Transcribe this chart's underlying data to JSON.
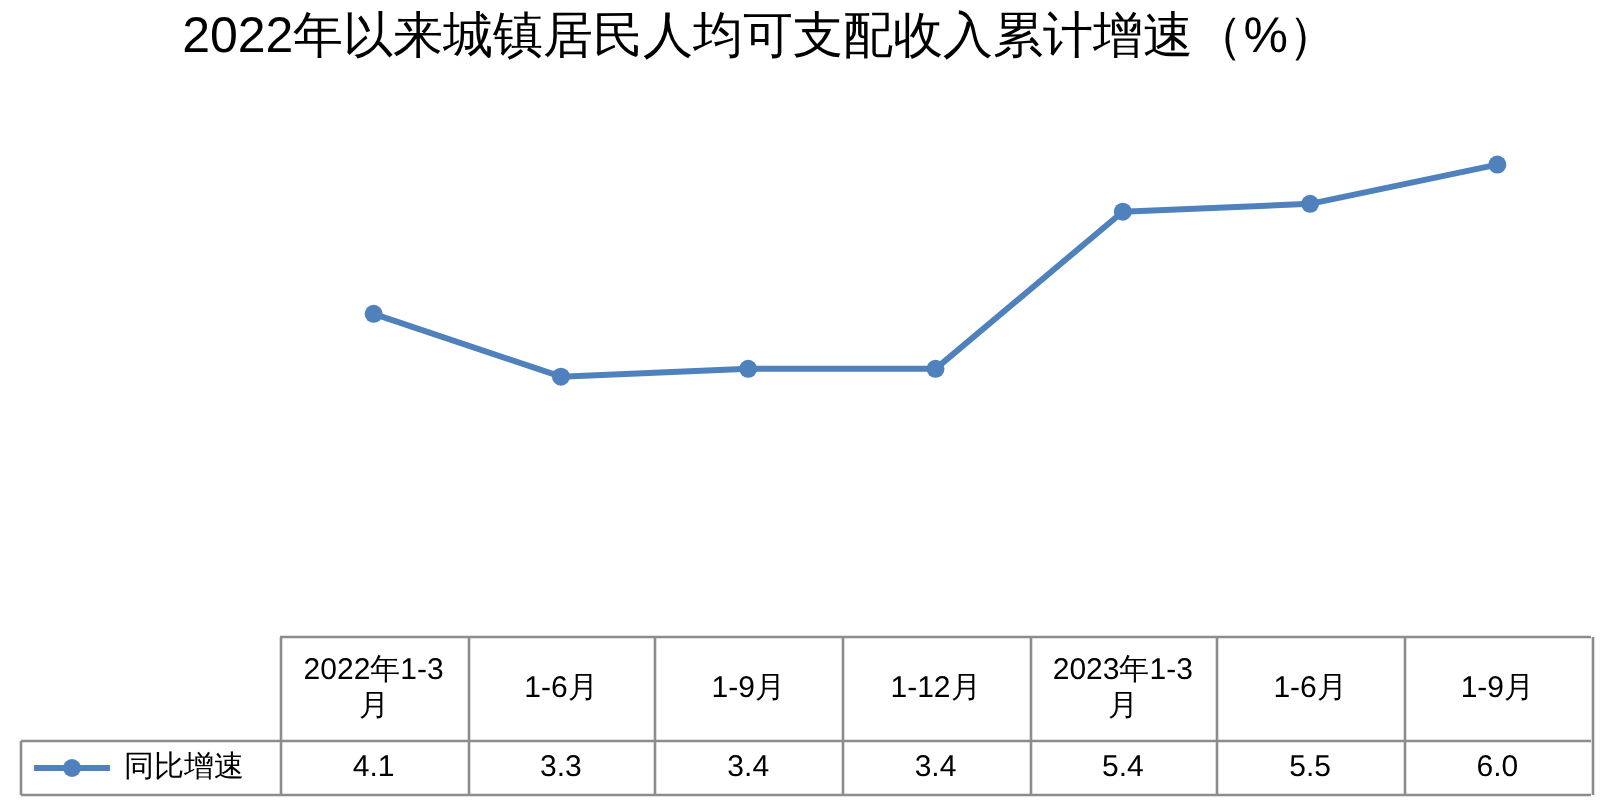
{
  "chart_data": {
    "type": "line",
    "title": "2022年以来城镇居民人均可支配收入累计增速（%）",
    "categories": [
      "2022年1-3月",
      "1-6月",
      "1-9月",
      "1-12月",
      "2023年1-3月",
      "1-6月",
      "1-9月"
    ],
    "series": [
      {
        "name": "同比增速",
        "color": "#4f81bd",
        "values": [
          4.1,
          3.3,
          3.4,
          3.4,
          5.4,
          5.5,
          6.0
        ],
        "value_labels": [
          "4.1",
          "3.3",
          "3.4",
          "3.4",
          "5.4",
          "5.5",
          "6.0"
        ]
      }
    ],
    "marker": "circle",
    "legend": "bottom left",
    "tick_labels": "x"
  }
}
